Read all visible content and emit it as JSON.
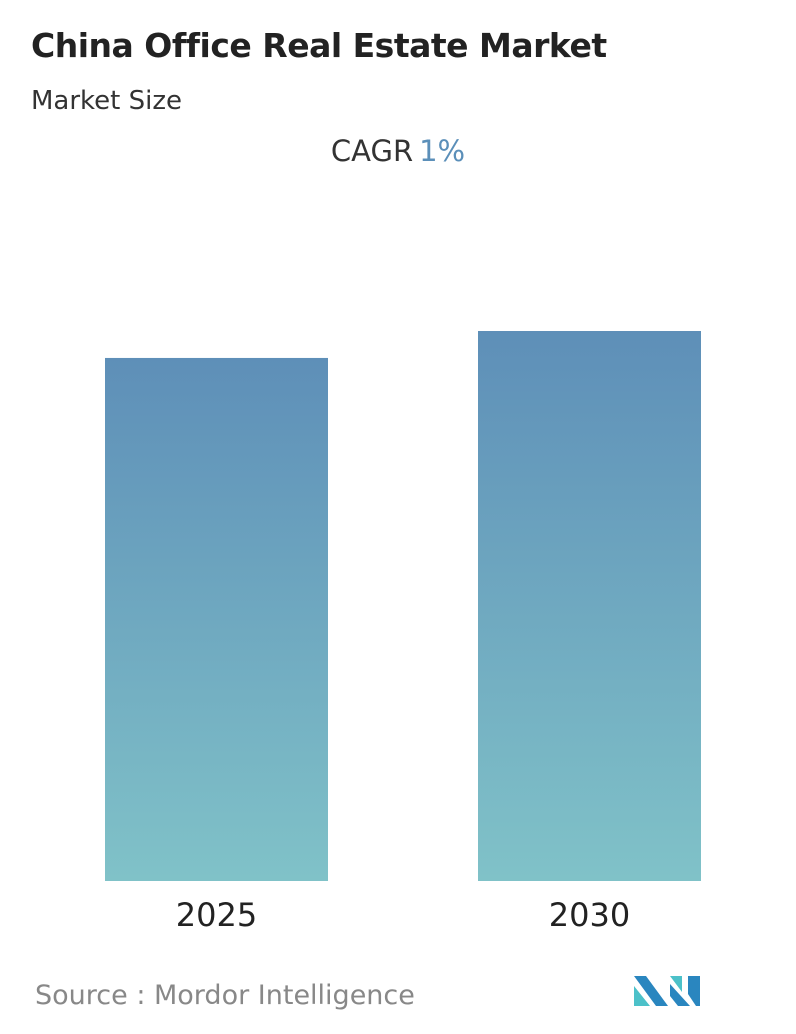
{
  "title": "China Office Real Estate Market",
  "subtitle": "Market Size",
  "cagr": {
    "label": "CAGR",
    "value": "1%"
  },
  "source": "Source :  Mordor Intelligence",
  "colors": {
    "bar_top": "#5e8fb8",
    "bar_bottom": "#80c2c8",
    "accent": "#5b8fb9"
  },
  "chart_data": {
    "type": "bar",
    "categories": [
      "2025",
      "2030"
    ],
    "values": [
      95.1,
      100
    ],
    "title": "China Office Real Estate Market",
    "xlabel": "",
    "ylabel": "",
    "grid": false,
    "legend": "none"
  },
  "logo": {
    "name": "mordor-intelligence-logo",
    "text": "Mordor Intelligence"
  }
}
